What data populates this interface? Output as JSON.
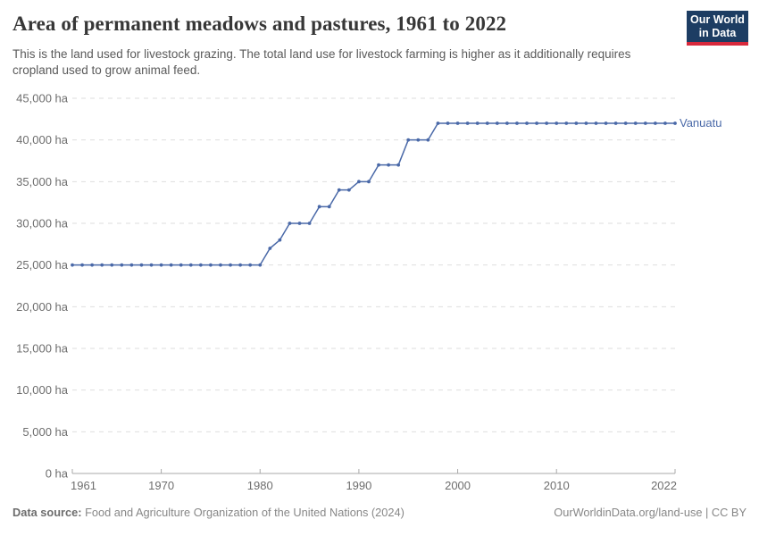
{
  "header": {
    "title": "Area of permanent meadows and pastures, 1961 to 2022",
    "subtitle": "This is the land used for livestock grazing. The total land use for livestock farming is higher as it additionally requires cropland used to grow animal feed.",
    "logo_line1": "Our World",
    "logo_line2": "in Data"
  },
  "chart_data": {
    "type": "line",
    "title": "Area of permanent meadows and pastures, 1961 to 2022",
    "xlabel": "",
    "ylabel": "",
    "xlim": [
      1961,
      2022
    ],
    "ylim": [
      0,
      45000
    ],
    "grid": "horizontal-dashed",
    "legend_position": "end-of-line-label",
    "x_ticks": [
      1961,
      1970,
      1980,
      1990,
      2000,
      2010,
      2022
    ],
    "y_ticks": [
      0,
      5000,
      10000,
      15000,
      20000,
      25000,
      30000,
      35000,
      40000,
      45000
    ],
    "y_tick_labels": [
      "0 ha",
      "5,000 ha",
      "10,000 ha",
      "15,000 ha",
      "20,000 ha",
      "25,000 ha",
      "30,000 ha",
      "35,000 ha",
      "40,000 ha",
      "45,000 ha"
    ],
    "series": [
      {
        "name": "Vanuatu",
        "color": "#4a69a8",
        "unit": "ha",
        "x": [
          1961,
          1962,
          1963,
          1964,
          1965,
          1966,
          1967,
          1968,
          1969,
          1970,
          1971,
          1972,
          1973,
          1974,
          1975,
          1976,
          1977,
          1978,
          1979,
          1980,
          1981,
          1982,
          1983,
          1984,
          1985,
          1986,
          1987,
          1988,
          1989,
          1990,
          1991,
          1992,
          1993,
          1994,
          1995,
          1996,
          1997,
          1998,
          1999,
          2000,
          2001,
          2002,
          2003,
          2004,
          2005,
          2006,
          2007,
          2008,
          2009,
          2010,
          2011,
          2012,
          2013,
          2014,
          2015,
          2016,
          2017,
          2018,
          2019,
          2020,
          2021,
          2022
        ],
        "values": [
          25000,
          25000,
          25000,
          25000,
          25000,
          25000,
          25000,
          25000,
          25000,
          25000,
          25000,
          25000,
          25000,
          25000,
          25000,
          25000,
          25000,
          25000,
          25000,
          25000,
          27000,
          28000,
          30000,
          30000,
          30000,
          32000,
          32000,
          34000,
          34000,
          35000,
          35000,
          37000,
          37000,
          37000,
          40000,
          40000,
          40000,
          42000,
          42000,
          42000,
          42000,
          42000,
          42000,
          42000,
          42000,
          42000,
          42000,
          42000,
          42000,
          42000,
          42000,
          42000,
          42000,
          42000,
          42000,
          42000,
          42000,
          42000,
          42000,
          42000,
          42000,
          42000
        ]
      }
    ]
  },
  "footer": {
    "source_label": "Data source:",
    "source_text": " Food and Agriculture Organization of the United Nations (2024)",
    "credit": "OurWorldinData.org/land-use | CC BY"
  },
  "colors": {
    "line": "#4a69a8",
    "logo_bg": "#1d3d63",
    "logo_red": "#d8293c",
    "grid": "#dedede",
    "axis": "#a9a9a9",
    "tick_label": "#6e6e6e",
    "title_text": "#373737",
    "subtitle_text": "#5a5a5a",
    "footer_text": "#878787"
  }
}
